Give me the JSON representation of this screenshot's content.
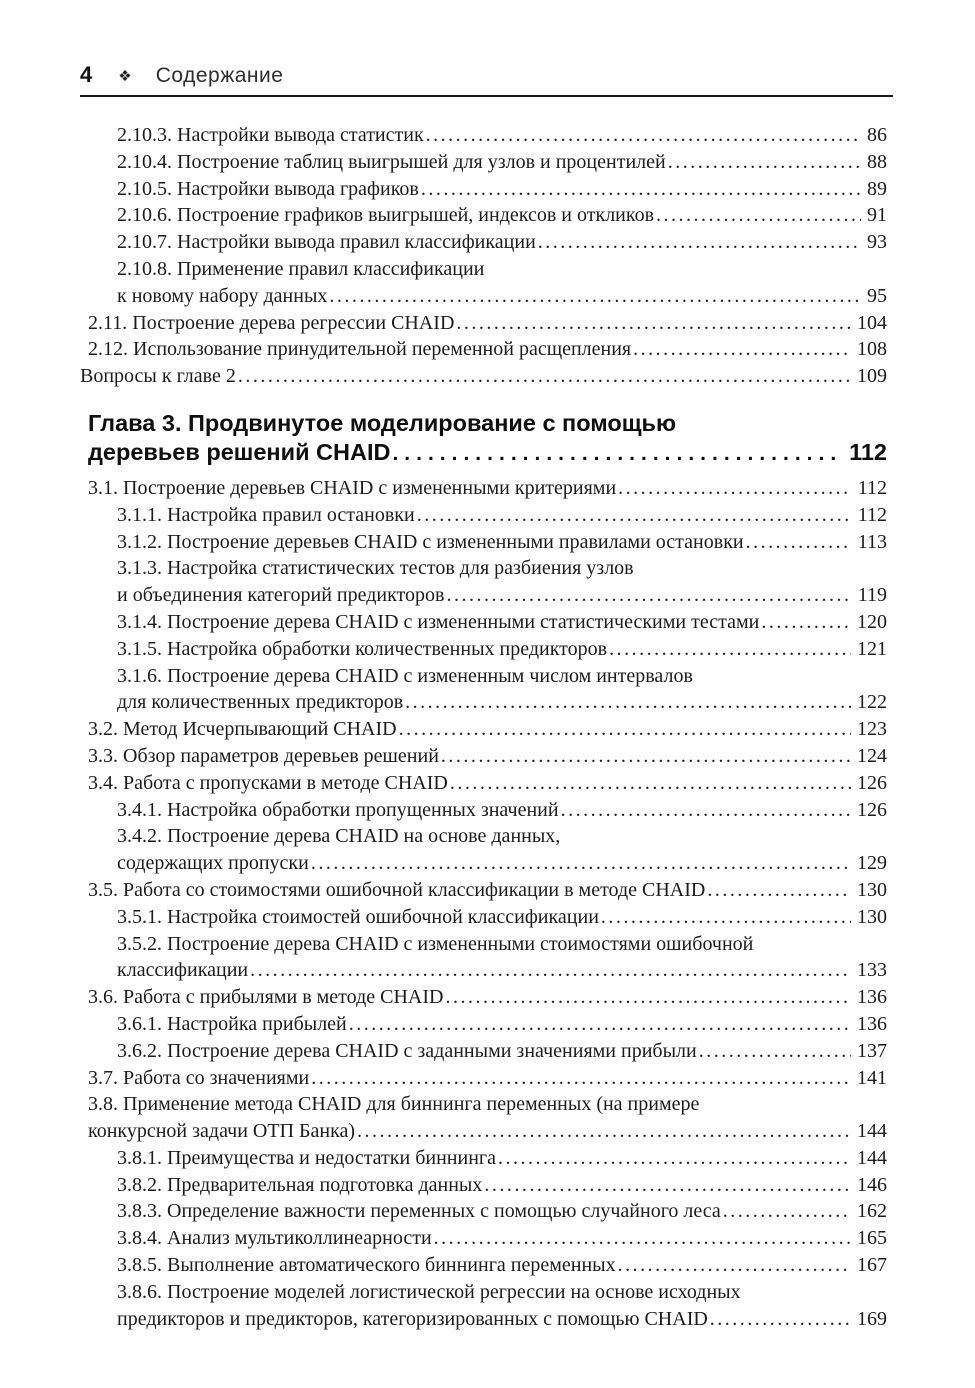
{
  "header": {
    "page_number": "4",
    "marker": "❖",
    "title": "Содержание"
  },
  "toc": {
    "entries": [
      {
        "text": "2.10.3. Настройки вывода статистик",
        "page": "86",
        "indent": 2
      },
      {
        "text": "2.10.4. Построение таблиц выигрышей для узлов и процентилей",
        "page": "88",
        "indent": 2
      },
      {
        "text": "2.10.5. Настройки вывода графиков",
        "page": "89",
        "indent": 2
      },
      {
        "text": "2.10.6. Построение графиков выигрышей, индексов и откликов",
        "page": "91",
        "indent": 2
      },
      {
        "text": "2.10.7. Настройки вывода правил классификации",
        "page": "93",
        "indent": 2
      },
      {
        "text": "2.10.8. Применение правил классификации",
        "page": null,
        "indent": 2
      },
      {
        "text": "к новому набору данных",
        "page": "95",
        "indent": 2
      },
      {
        "text": "2.11. Построение дерева регрессии CHAID",
        "page": "104",
        "indent": 1
      },
      {
        "text": "2.12. Использование принудительной переменной расщепления",
        "page": "108",
        "indent": 1
      },
      {
        "text": "Вопросы к главе 2",
        "page": "109",
        "indent": 0
      },
      {
        "text": "Глава 3. Продвинутое моделирование с помощью",
        "page": null,
        "indent": 1,
        "variant": "chapter first"
      },
      {
        "text": "деревьев решений CHAID",
        "page": "112",
        "indent": 1,
        "variant": "chapter last"
      },
      {
        "text": "3.1. Построение деревьев CHAID с измененными критериями",
        "page": "112",
        "indent": 1
      },
      {
        "text": "3.1.1. Настройка правил остановки",
        "page": "112",
        "indent": 2
      },
      {
        "text": "3.1.2. Построение деревьев CHAID с измененными правилами остановки",
        "page": "113",
        "indent": 2
      },
      {
        "text": "3.1.3. Настройка статистических тестов для разбиения узлов",
        "page": null,
        "indent": 2
      },
      {
        "text": "и объединения категорий предикторов",
        "page": "119",
        "indent": 2
      },
      {
        "text": "3.1.4. Построение дерева CHAID с измененными статистическими тестами",
        "page": "120",
        "indent": 2
      },
      {
        "text": "3.1.5. Настройка обработки количественных предикторов",
        "page": "121",
        "indent": 2
      },
      {
        "text": "3.1.6. Построение дерева CHAID с измененным числом интервалов",
        "page": null,
        "indent": 2
      },
      {
        "text": "для количественных предикторов",
        "page": "122",
        "indent": 2
      },
      {
        "text": "3.2. Метод Исчерпывающий CHAID",
        "page": "123",
        "indent": 1
      },
      {
        "text": "3.3. Обзор параметров деревьев решений",
        "page": "124",
        "indent": 1
      },
      {
        "text": "3.4. Работа с пропусками в методе CHAID",
        "page": "126",
        "indent": 1
      },
      {
        "text": "3.4.1. Настройка обработки пропущенных значений",
        "page": "126",
        "indent": 2
      },
      {
        "text": "3.4.2. Построение дерева CHAID на основе данных,",
        "page": null,
        "indent": 2
      },
      {
        "text": "содержащих пропуски",
        "page": "129",
        "indent": 2
      },
      {
        "text": "3.5. Работа со стоимостями ошибочной классификации в методе CHAID",
        "page": "130",
        "indent": 1
      },
      {
        "text": "3.5.1. Настройка стоимостей ошибочной классификации",
        "page": "130",
        "indent": 2
      },
      {
        "text": "3.5.2. Построение дерева CHAID с измененными стоимостями ошибочной",
        "page": null,
        "indent": 2
      },
      {
        "text": "классификации",
        "page": "133",
        "indent": 2
      },
      {
        "text": "3.6. Работа с прибылями в методе CHAID",
        "page": "136",
        "indent": 1
      },
      {
        "text": "3.6.1. Настройка прибылей",
        "page": "136",
        "indent": 2
      },
      {
        "text": "3.6.2. Построение дерева CHAID с заданными значениями прибыли",
        "page": "137",
        "indent": 2
      },
      {
        "text": "3.7. Работа со значениями",
        "page": "141",
        "indent": 1
      },
      {
        "text": "3.8. Применение метода CHAID для биннинга переменных (на примере",
        "page": null,
        "indent": 1
      },
      {
        "text": "конкурсной задачи ОТП Банка)",
        "page": "144",
        "indent": 1
      },
      {
        "text": "3.8.1. Преимущества и недостатки биннинга",
        "page": "144",
        "indent": 2
      },
      {
        "text": "3.8.2. Предварительная подготовка данных",
        "page": "146",
        "indent": 2
      },
      {
        "text": "3.8.3. Определение важности переменных с помощью случайного леса",
        "page": "162",
        "indent": 2
      },
      {
        "text": "3.8.4. Анализ мультиколлинеарности",
        "page": "165",
        "indent": 2
      },
      {
        "text": "3.8.5. Выполнение автоматического биннинга переменных",
        "page": "167",
        "indent": 2
      },
      {
        "text": "3.8.6. Построение моделей логистической регрессии на основе исходных",
        "page": null,
        "indent": 2
      },
      {
        "text": "предикторов и предикторов, категоризированных с помощью CHAID",
        "page": "169",
        "indent": 2
      }
    ]
  }
}
